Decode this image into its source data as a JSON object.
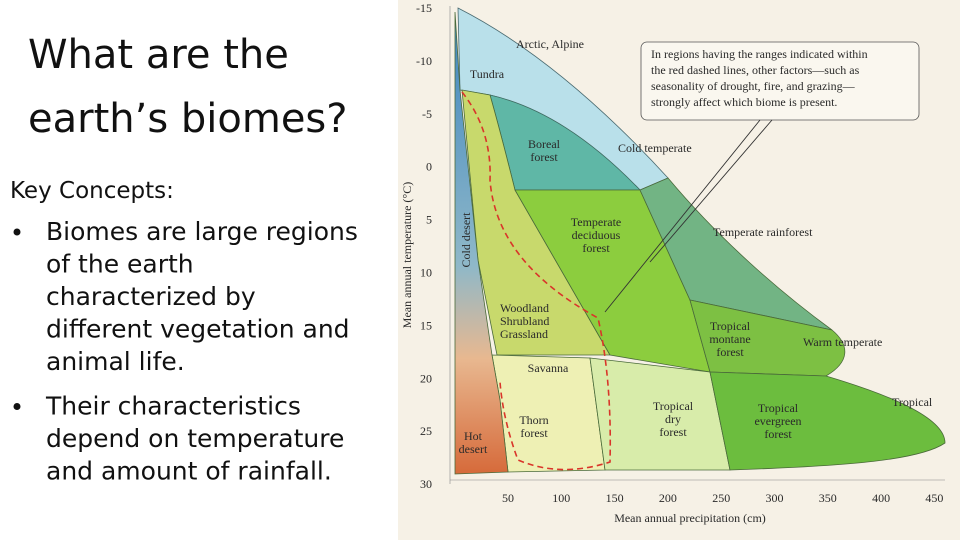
{
  "slide": {
    "title": [
      "What are the",
      "earth’s biomes?"
    ],
    "subheading": "Key Concepts:",
    "bullets": [
      [
        "Biomes are large regions",
        "of the earth",
        "characterized by",
        "different vegetation and",
        "animal life."
      ],
      [
        "Their characteristics",
        "depend on temperature",
        "and amount of rainfall."
      ]
    ]
  },
  "diagram": {
    "y_axis_title": "Mean annual temperature (°C)",
    "x_axis_title": "Mean annual precipitation (cm)",
    "y_ticks": [
      "-15",
      "-10",
      "-5",
      "0",
      "5",
      "10",
      "15",
      "20",
      "25",
      "30"
    ],
    "x_ticks": [
      "50",
      "100",
      "150",
      "200",
      "250",
      "300",
      "350",
      "400",
      "450"
    ],
    "biomes": [
      [
        "Arctic, Alpine"
      ],
      [
        "Tundra"
      ],
      [
        "Boreal",
        "forest"
      ],
      [
        "Cold desert"
      ],
      [
        "Temperate",
        "deciduous",
        "forest"
      ],
      [
        "Woodland",
        "Shrubland",
        "Grassland"
      ],
      [
        "Savanna"
      ],
      [
        "Thorn",
        "forest"
      ],
      [
        "Hot",
        "desert"
      ],
      [
        "Tropical",
        "dry",
        "forest"
      ],
      [
        "Tropical",
        "montane",
        "forest"
      ],
      [
        "Tropical",
        "evergreen",
        "forest"
      ]
    ],
    "zones": [
      "Cold temperate",
      "Temperate rainforest",
      "Warm temperate",
      "Tropical"
    ],
    "note": [
      "In regions having the ranges indicated within",
      "the red dashed lines, other factors—such as",
      "seasonality of drought, fire, and grazing—",
      "strongly affect which biome is present."
    ]
  }
}
